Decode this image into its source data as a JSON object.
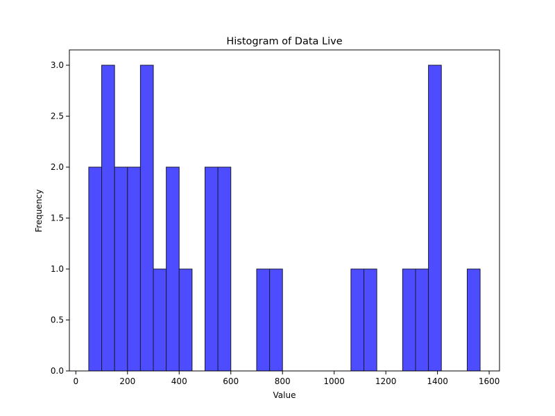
{
  "chart_data": {
    "type": "bar",
    "title": "Histogram of Data Live",
    "xlabel": "Value",
    "ylabel": "Frequency",
    "xlim": [
      -25,
      1640
    ],
    "ylim": [
      0,
      3.15
    ],
    "x_ticks": [
      0,
      200,
      400,
      600,
      800,
      1000,
      1200,
      1400,
      1600
    ],
    "y_ticks": [
      0.0,
      0.5,
      1.0,
      1.5,
      2.0,
      2.5,
      3.0
    ],
    "x_tick_labels": [
      "0",
      "200",
      "400",
      "600",
      "800",
      "1000",
      "1200",
      "1400",
      "1600"
    ],
    "y_tick_labels": [
      "0.0",
      "0.5",
      "1.0",
      "1.5",
      "2.0",
      "2.5",
      "3.0"
    ],
    "bins": [
      {
        "start": 50,
        "end": 100,
        "count": 2
      },
      {
        "start": 100,
        "end": 150,
        "count": 3
      },
      {
        "start": 150,
        "end": 200,
        "count": 2
      },
      {
        "start": 200,
        "end": 250,
        "count": 2
      },
      {
        "start": 250,
        "end": 300,
        "count": 3
      },
      {
        "start": 300,
        "end": 350,
        "count": 1
      },
      {
        "start": 350,
        "end": 400,
        "count": 2
      },
      {
        "start": 400,
        "end": 450,
        "count": 1
      },
      {
        "start": 500,
        "end": 550,
        "count": 2
      },
      {
        "start": 550,
        "end": 600,
        "count": 2
      },
      {
        "start": 700,
        "end": 750,
        "count": 1
      },
      {
        "start": 750,
        "end": 800,
        "count": 1
      },
      {
        "start": 1065,
        "end": 1115,
        "count": 1
      },
      {
        "start": 1115,
        "end": 1165,
        "count": 1
      },
      {
        "start": 1265,
        "end": 1315,
        "count": 1
      },
      {
        "start": 1315,
        "end": 1365,
        "count": 1
      },
      {
        "start": 1365,
        "end": 1415,
        "count": 3
      },
      {
        "start": 1515,
        "end": 1565,
        "count": 1
      }
    ],
    "bar_color": "#4d4dff",
    "edge_color": "#1a1a33",
    "grid": false,
    "legend": false
  }
}
